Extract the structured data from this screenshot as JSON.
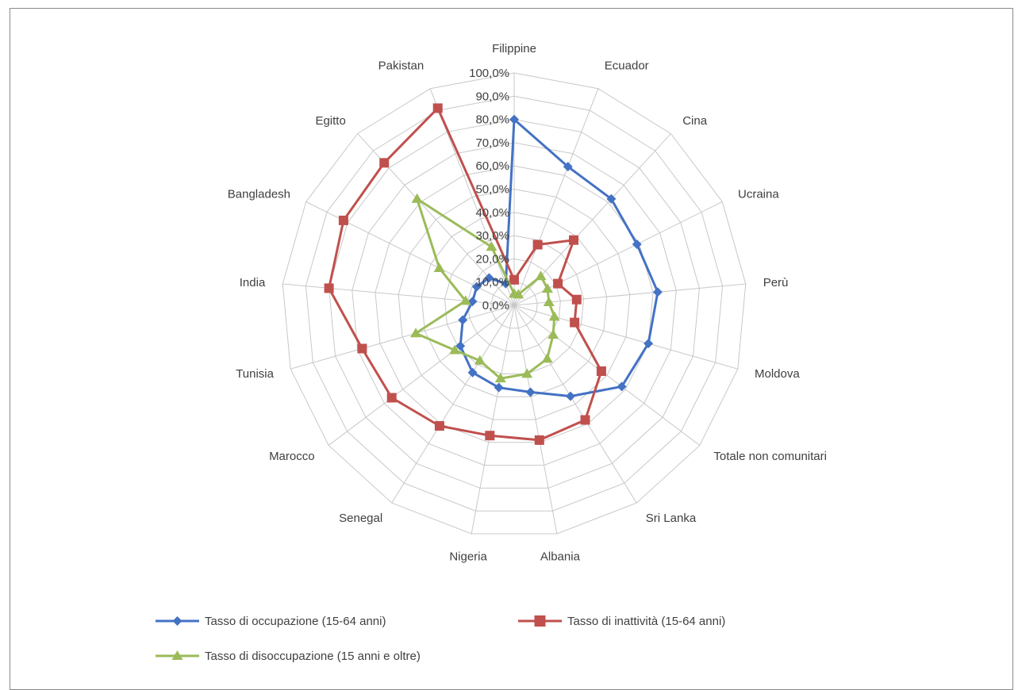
{
  "chart_data": {
    "type": "radar",
    "categories": [
      "Filippine",
      "Ecuador",
      "Cina",
      "Ucraina",
      "Perù",
      "Moldova",
      "Totale non comunitari",
      "Sri Lanka",
      "Albania",
      "Nigeria",
      "Senegal",
      "Marocco",
      "Tunisia",
      "India",
      "Bangladesh",
      "Egitto",
      "Pakistan"
    ],
    "tick_labels": [
      "0,0%",
      "10,0%",
      "20,0%",
      "30,0%",
      "40,0%",
      "50,0%",
      "60,0%",
      "70,0%",
      "80,0%",
      "90,0%",
      "100,0%"
    ],
    "rlim": [
      0,
      100
    ],
    "grid": true,
    "legend_position": "bottom",
    "series": [
      {
        "name": "Tasso di occupazione (15-64 anni)",
        "color": "#4472C4",
        "marker": "diamond",
        "values": [
          80,
          64,
          62,
          59,
          62,
          60,
          58,
          46,
          38,
          36,
          34,
          29,
          23,
          18,
          18,
          16,
          10
        ]
      },
      {
        "name": "Tasso di inattività (15-64 anni)",
        "color": "#C0504D",
        "marker": "square",
        "values": [
          11,
          28,
          38,
          21,
          27,
          27,
          47,
          58,
          59,
          57,
          61,
          66,
          68,
          80,
          82,
          83,
          91
        ]
      },
      {
        "name": "Tasso di disoccupazione (15 anni e oltre)",
        "color": "#9BBB59",
        "marker": "triangle",
        "values": [
          5,
          5,
          17,
          16,
          15,
          18,
          21,
          27,
          30,
          32,
          28,
          32,
          44,
          21,
          36,
          62,
          27
        ]
      }
    ]
  }
}
